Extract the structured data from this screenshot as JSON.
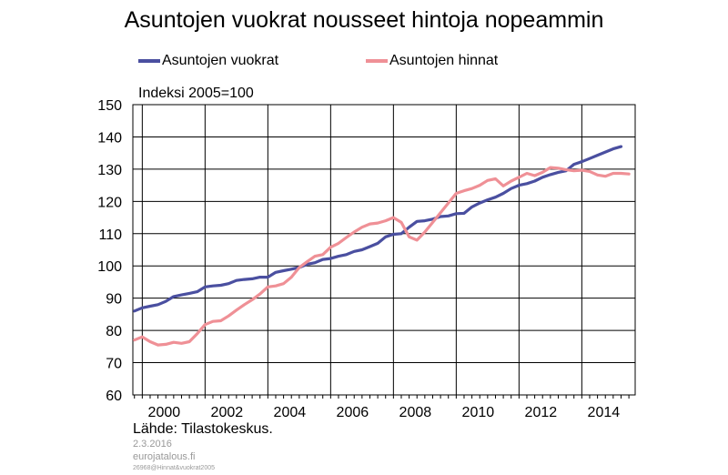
{
  "chart_data": {
    "type": "line",
    "title": "Asuntojen vuokrat nousseet hintoja nopeammin",
    "ylabel": "Indeksi 2005=100",
    "xlabel": "",
    "ylim": [
      60,
      150
    ],
    "xlim": [
      1999.7,
      2015.7
    ],
    "yticks": [
      "60",
      "70",
      "80",
      "90",
      "100",
      "110",
      "120",
      "130",
      "140",
      "150"
    ],
    "xticks": [
      "2000",
      "2002",
      "2004",
      "2006",
      "2008",
      "2010",
      "2012",
      "2014"
    ],
    "grid": true,
    "legend_position": "top",
    "series": [
      {
        "name": "Asuntojen vuokrat",
        "color": "#4a4fa0",
        "points": [
          [
            1999.75,
            86.0
          ],
          [
            2000.0,
            87.0
          ],
          [
            2000.25,
            87.5
          ],
          [
            2000.5,
            88.0
          ],
          [
            2000.75,
            89.0
          ],
          [
            2001.0,
            90.5
          ],
          [
            2001.25,
            91.0
          ],
          [
            2001.5,
            91.5
          ],
          [
            2001.75,
            92.0
          ],
          [
            2002.0,
            93.5
          ],
          [
            2002.25,
            93.8
          ],
          [
            2002.5,
            94.0
          ],
          [
            2002.75,
            94.5
          ],
          [
            2003.0,
            95.5
          ],
          [
            2003.25,
            95.8
          ],
          [
            2003.5,
            96.0
          ],
          [
            2003.75,
            96.5
          ],
          [
            2004.0,
            96.5
          ],
          [
            2004.25,
            98.0
          ],
          [
            2004.5,
            98.5
          ],
          [
            2004.75,
            99.0
          ],
          [
            2005.0,
            99.5
          ],
          [
            2005.25,
            100.5
          ],
          [
            2005.5,
            101.0
          ],
          [
            2005.75,
            102.0
          ],
          [
            2006.0,
            102.3
          ],
          [
            2006.25,
            103.0
          ],
          [
            2006.5,
            103.5
          ],
          [
            2006.75,
            104.5
          ],
          [
            2007.0,
            105.0
          ],
          [
            2007.25,
            106.0
          ],
          [
            2007.5,
            107.0
          ],
          [
            2007.75,
            109.0
          ],
          [
            2008.0,
            109.8
          ],
          [
            2008.25,
            110.0
          ],
          [
            2008.5,
            112.0
          ],
          [
            2008.75,
            113.8
          ],
          [
            2009.0,
            114.0
          ],
          [
            2009.25,
            114.5
          ],
          [
            2009.5,
            115.3
          ],
          [
            2009.75,
            115.5
          ],
          [
            2010.0,
            116.2
          ],
          [
            2010.25,
            116.3
          ],
          [
            2010.5,
            118.3
          ],
          [
            2010.75,
            119.5
          ],
          [
            2011.0,
            120.5
          ],
          [
            2011.25,
            121.3
          ],
          [
            2011.5,
            122.5
          ],
          [
            2011.75,
            124.0
          ],
          [
            2012.0,
            125.0
          ],
          [
            2012.25,
            125.5
          ],
          [
            2012.5,
            126.3
          ],
          [
            2012.75,
            127.5
          ],
          [
            2013.0,
            128.3
          ],
          [
            2013.25,
            129.0
          ],
          [
            2013.5,
            129.5
          ],
          [
            2013.75,
            131.5
          ],
          [
            2014.0,
            132.3
          ],
          [
            2014.25,
            133.3
          ],
          [
            2014.5,
            134.3
          ],
          [
            2014.75,
            135.3
          ],
          [
            2015.0,
            136.3
          ],
          [
            2015.25,
            137.0
          ]
        ]
      },
      {
        "name": "Asuntojen hinnat",
        "color": "#ef9096",
        "points": [
          [
            1999.75,
            77.0
          ],
          [
            2000.0,
            78.0
          ],
          [
            2000.25,
            76.5
          ],
          [
            2000.5,
            75.5
          ],
          [
            2000.75,
            75.7
          ],
          [
            2001.0,
            76.3
          ],
          [
            2001.25,
            76.0
          ],
          [
            2001.5,
            76.5
          ],
          [
            2001.75,
            79.0
          ],
          [
            2002.0,
            81.8
          ],
          [
            2002.25,
            82.8
          ],
          [
            2002.5,
            83.0
          ],
          [
            2002.75,
            84.5
          ],
          [
            2003.0,
            86.3
          ],
          [
            2003.25,
            88.0
          ],
          [
            2003.5,
            89.5
          ],
          [
            2003.75,
            91.3
          ],
          [
            2004.0,
            93.5
          ],
          [
            2004.25,
            93.8
          ],
          [
            2004.5,
            94.5
          ],
          [
            2004.75,
            96.5
          ],
          [
            2005.0,
            99.5
          ],
          [
            2005.25,
            101.3
          ],
          [
            2005.5,
            103.0
          ],
          [
            2005.75,
            103.5
          ],
          [
            2006.0,
            105.8
          ],
          [
            2006.25,
            107.0
          ],
          [
            2006.5,
            108.8
          ],
          [
            2006.75,
            110.5
          ],
          [
            2007.0,
            112.0
          ],
          [
            2007.25,
            113.0
          ],
          [
            2007.5,
            113.3
          ],
          [
            2007.75,
            114.0
          ],
          [
            2008.0,
            115.0
          ],
          [
            2008.25,
            113.5
          ],
          [
            2008.5,
            109.0
          ],
          [
            2008.75,
            108.0
          ],
          [
            2009.0,
            110.5
          ],
          [
            2009.25,
            113.5
          ],
          [
            2009.5,
            116.5
          ],
          [
            2009.75,
            119.5
          ],
          [
            2010.0,
            122.5
          ],
          [
            2010.25,
            123.3
          ],
          [
            2010.5,
            124.0
          ],
          [
            2010.75,
            125.0
          ],
          [
            2011.0,
            126.5
          ],
          [
            2011.25,
            127.0
          ],
          [
            2011.5,
            124.8
          ],
          [
            2011.75,
            126.3
          ],
          [
            2012.0,
            127.5
          ],
          [
            2012.25,
            128.7
          ],
          [
            2012.5,
            128.0
          ],
          [
            2012.75,
            129.0
          ],
          [
            2013.0,
            130.5
          ],
          [
            2013.25,
            130.3
          ],
          [
            2013.5,
            129.8
          ],
          [
            2013.75,
            129.5
          ],
          [
            2014.0,
            129.7
          ],
          [
            2014.25,
            129.3
          ],
          [
            2014.5,
            128.2
          ],
          [
            2014.75,
            127.8
          ],
          [
            2015.0,
            128.7
          ],
          [
            2015.25,
            128.7
          ],
          [
            2015.5,
            128.5
          ]
        ]
      }
    ]
  },
  "footer": {
    "source": "Lähde: Tilastokeskus.",
    "date": "2.3.2016",
    "site": "eurojatalous.fi",
    "code": "26968@Hinnat&vuokrat2005"
  }
}
